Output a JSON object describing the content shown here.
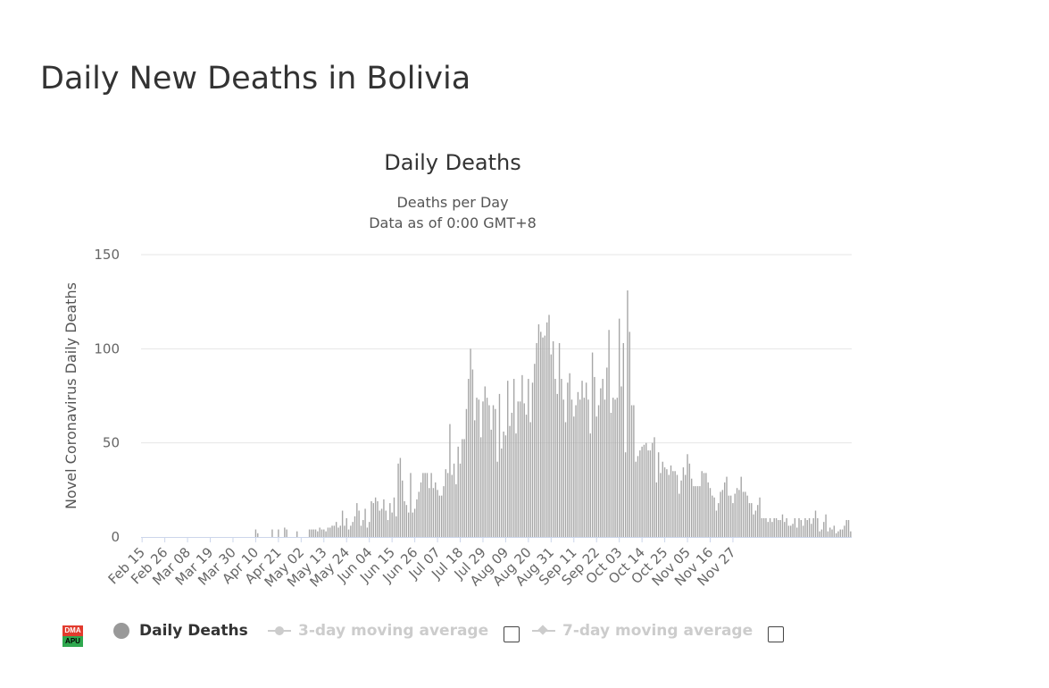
{
  "page": {
    "title": "Daily New Deaths in Bolivia"
  },
  "logo": {
    "top": "DMA",
    "bottom": "APU"
  },
  "legend": {
    "series_1": "Daily Deaths",
    "series_2": "3-day moving average",
    "series_3": "7-day moving average"
  },
  "colors": {
    "bar": "#a6a6a6",
    "grid": "#e6e6e6",
    "axis": "#ccd6eb",
    "inactive": "#cccccc"
  },
  "chart_data": {
    "type": "bar",
    "title": "Daily Deaths",
    "subtitle": "Deaths per Day",
    "subtitle_2": "Data as of 0:00 GMT+8",
    "ylabel": "Novel Coronavirus Daily Deaths",
    "xlabel": "",
    "ylim": [
      0,
      150
    ],
    "yticks": [
      0,
      50,
      100,
      150
    ],
    "grid": true,
    "legend_position": "bottom",
    "x_tick_labels": [
      "Feb 15",
      "Feb 26",
      "Mar 08",
      "Mar 19",
      "Mar 30",
      "Apr 10",
      "Apr 21",
      "May 02",
      "May 13",
      "May 24",
      "Jun 04",
      "Jun 15",
      "Jun 26",
      "Jul 07",
      "Jul 18",
      "Jul 29",
      "Aug 09",
      "Aug 20",
      "Aug 31",
      "Sep 11",
      "Sep 22",
      "Oct 03",
      "Oct 14",
      "Oct 25",
      "Nov 05",
      "Nov 16",
      "Nov 27"
    ],
    "series": [
      {
        "name": "Daily Deaths",
        "start_date": "Feb 15",
        "values": [
          0,
          0,
          0,
          0,
          0,
          0,
          0,
          0,
          0,
          0,
          0,
          0,
          0,
          0,
          0,
          0,
          0,
          0,
          0,
          0,
          0,
          0,
          0,
          0,
          0,
          0,
          0,
          0,
          0,
          0,
          0,
          0,
          0,
          0,
          0,
          0,
          0,
          0,
          0,
          0,
          0,
          0,
          0,
          0,
          0,
          0,
          0,
          0,
          0,
          0,
          0,
          0,
          0,
          0,
          0,
          4,
          2,
          0,
          0,
          0,
          0,
          0,
          0,
          4,
          0,
          0,
          4,
          0,
          0,
          5,
          4,
          0,
          0,
          0,
          0,
          3,
          0,
          0,
          0,
          0,
          0,
          4,
          4,
          4,
          4,
          3,
          5,
          4,
          4,
          3,
          5,
          5,
          6,
          6,
          8,
          5,
          6,
          14,
          6,
          10,
          4,
          6,
          8,
          11,
          18,
          14,
          6,
          9,
          15,
          5,
          8,
          19,
          18,
          21,
          19,
          14,
          15,
          20,
          14,
          9,
          18,
          13,
          21,
          11,
          39,
          42,
          30,
          19,
          17,
          13,
          34,
          13,
          15,
          20,
          24,
          29,
          34,
          34,
          34,
          26,
          34,
          26,
          29,
          25,
          22,
          22,
          27,
          36,
          34,
          60,
          33,
          39,
          28,
          48,
          39,
          52,
          52,
          68,
          84,
          100,
          89,
          62,
          74,
          73,
          53,
          72,
          80,
          74,
          70,
          57,
          70,
          68,
          40,
          76,
          47,
          56,
          54,
          83,
          59,
          66,
          84,
          55,
          72,
          72,
          86,
          71,
          65,
          84,
          61,
          82,
          92,
          103,
          113,
          109,
          106,
          107,
          114,
          118,
          97,
          104,
          84,
          76,
          103,
          84,
          73,
          61,
          82,
          87,
          73,
          64,
          70,
          77,
          73,
          83,
          74,
          82,
          73,
          55,
          98,
          85,
          64,
          70,
          79,
          84,
          73,
          90,
          110,
          66,
          74,
          73,
          74,
          116,
          80,
          103,
          45,
          131,
          109,
          70,
          70,
          40,
          43,
          46,
          48,
          49,
          50,
          46,
          46,
          50,
          53,
          29,
          45,
          34,
          40,
          37,
          36,
          33,
          38,
          35,
          35,
          33,
          23,
          30,
          37,
          33,
          44,
          39,
          31,
          27,
          27,
          27,
          27,
          35,
          34,
          34,
          29,
          26,
          22,
          21,
          14,
          18,
          24,
          25,
          29,
          32,
          22,
          22,
          18,
          23,
          26,
          25,
          32,
          24,
          24,
          22,
          18,
          18,
          12,
          14,
          17,
          21,
          10,
          10,
          10,
          8,
          10,
          8,
          10,
          10,
          9,
          9,
          12,
          8,
          10,
          6,
          6,
          7,
          10,
          5,
          10,
          9,
          6,
          10,
          9,
          10,
          7,
          10,
          14,
          10,
          3,
          4,
          8,
          12,
          3,
          5,
          4,
          6,
          2,
          3,
          4,
          4,
          6,
          9,
          9,
          3
        ]
      },
      {
        "name": "3-day moving average",
        "visible": false
      },
      {
        "name": "7-day moving average",
        "visible": false
      }
    ]
  }
}
